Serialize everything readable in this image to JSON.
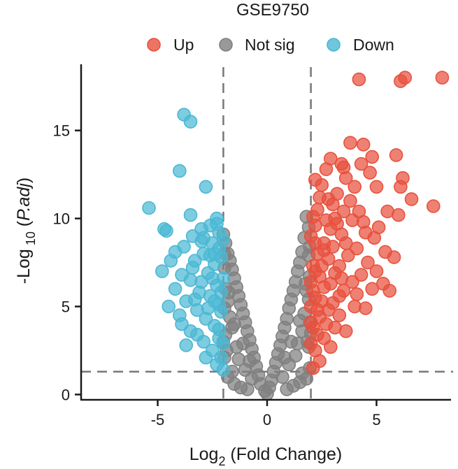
{
  "chart_data": {
    "type": "scatter",
    "title": "GSE9750",
    "xlabel": {
      "prefix": "Log",
      "subscript": "2",
      "suffix": " (Fold Change)"
    },
    "ylabel": {
      "prefix": "-Log",
      "subscript": " 10",
      "middle": " (",
      "italic": "P.adj",
      "suffix": ")"
    },
    "xlim": [
      -8.5,
      8.5
    ],
    "ylim": [
      -0.3,
      18.6
    ],
    "xticks": [
      -5,
      0,
      5
    ],
    "xtick_labels": [
      "-5",
      "0",
      "5"
    ],
    "yticks": [
      0,
      5,
      10,
      15
    ],
    "ytick_labels": [
      "0",
      "5",
      "10",
      "15"
    ],
    "thresholds": {
      "log2fc": [
        -2,
        2
      ],
      "neg_log10_padj": 1.3
    },
    "legend": {
      "placement": "top",
      "entries": [
        {
          "key": "up",
          "label": "Up",
          "color": "#e8513d"
        },
        {
          "key": "notsig",
          "label": "Not sig",
          "color": "#808080"
        },
        {
          "key": "down",
          "label": "Down",
          "color": "#4bb8d4"
        }
      ]
    },
    "series": [
      {
        "name": "Up",
        "color": "#e8513d",
        "points": [
          [
            8.0,
            18.0
          ],
          [
            6.3,
            18.0
          ],
          [
            6.1,
            17.8
          ],
          [
            4.2,
            17.9
          ],
          [
            3.8,
            14.3
          ],
          [
            4.4,
            14.2
          ],
          [
            4.8,
            13.5
          ],
          [
            5.9,
            13.6
          ],
          [
            4.3,
            13.1
          ],
          [
            3.4,
            13.1
          ],
          [
            2.9,
            13.4
          ],
          [
            3.6,
            12.3
          ],
          [
            6.2,
            12.3
          ],
          [
            6.1,
            11.8
          ],
          [
            2.5,
            11.9
          ],
          [
            5.0,
            11.8
          ],
          [
            4.0,
            11.8
          ],
          [
            3.2,
            11.4
          ],
          [
            2.4,
            11.2
          ],
          [
            3.0,
            10.8
          ],
          [
            7.6,
            10.7
          ],
          [
            5.5,
            10.4
          ],
          [
            6.0,
            10.2
          ],
          [
            3.5,
            10.4
          ],
          [
            3.1,
            10.0
          ],
          [
            2.7,
            9.9
          ],
          [
            4.4,
            9.8
          ],
          [
            3.9,
            9.9
          ],
          [
            5.1,
            9.5
          ],
          [
            2.2,
            9.6
          ],
          [
            4.9,
            8.9
          ],
          [
            3.4,
            9.1
          ],
          [
            2.6,
            8.6
          ],
          [
            5.4,
            8.1
          ],
          [
            4.1,
            8.3
          ],
          [
            3.0,
            8.4
          ],
          [
            2.3,
            8.0
          ],
          [
            3.7,
            7.9
          ],
          [
            4.6,
            7.5
          ],
          [
            2.8,
            7.7
          ],
          [
            5.0,
            7.0
          ],
          [
            4.3,
            6.8
          ],
          [
            3.1,
            6.9
          ],
          [
            2.4,
            6.7
          ],
          [
            3.9,
            6.4
          ],
          [
            5.3,
            6.3
          ],
          [
            4.8,
            6.0
          ],
          [
            2.6,
            6.1
          ],
          [
            3.5,
            5.9
          ],
          [
            4.1,
            5.7
          ],
          [
            2.2,
            5.5
          ],
          [
            3.0,
            5.2
          ],
          [
            5.6,
            5.9
          ],
          [
            2.8,
            4.8
          ],
          [
            2.4,
            4.4
          ],
          [
            3.3,
            4.5
          ],
          [
            2.1,
            3.8
          ],
          [
            2.6,
            3.2
          ],
          [
            2.2,
            2.5
          ],
          [
            2.9,
            2.7
          ],
          [
            2.4,
            1.9
          ],
          [
            2.1,
            1.5
          ],
          [
            2.0,
            2.9
          ],
          [
            2.5,
            5.3
          ],
          [
            2.0,
            6.4
          ],
          [
            2.1,
            7.3
          ],
          [
            2.2,
            8.6
          ],
          [
            2.9,
            9.4
          ],
          [
            3.3,
            7.3
          ],
          [
            3.6,
            8.6
          ],
          [
            4.5,
            9.2
          ],
          [
            3.8,
            11.0
          ],
          [
            2.7,
            12.8
          ],
          [
            4.2,
            10.4
          ],
          [
            5.8,
            7.8
          ],
          [
            3.3,
            5.6
          ],
          [
            2.3,
            3.4
          ],
          [
            2.7,
            4.0
          ],
          [
            2.1,
            10.1
          ],
          [
            2.0,
            9.0
          ],
          [
            2.3,
            4.8
          ],
          [
            3.1,
            3.8
          ],
          [
            4.0,
            5.0
          ],
          [
            3.6,
            3.6
          ],
          [
            2.5,
            7.3
          ],
          [
            2.9,
            6.3
          ],
          [
            3.4,
            6.6
          ],
          [
            4.5,
            4.9
          ],
          [
            2.0,
            4.1
          ],
          [
            2.8,
            11.1
          ],
          [
            3.5,
            12.9
          ],
          [
            4.7,
            12.6
          ],
          [
            2.2,
            12.2
          ],
          [
            6.6,
            11.1
          ],
          [
            2.1,
            5.9
          ],
          [
            2.0,
            5.0
          ],
          [
            2.2,
            7.0
          ],
          [
            2.6,
            8.2
          ],
          [
            3.2,
            9.7
          ],
          [
            2.3,
            10.5
          ]
        ]
      },
      {
        "name": "Not sig",
        "color": "#808080",
        "points": [
          [
            1.8,
            10.1
          ],
          [
            -2.0,
            9.1
          ],
          [
            1.9,
            9.5
          ],
          [
            -1.9,
            8.6
          ],
          [
            1.7,
            8.9
          ],
          [
            -1.8,
            8.0
          ],
          [
            1.6,
            8.1
          ],
          [
            -1.7,
            7.6
          ],
          [
            1.5,
            7.5
          ],
          [
            -1.6,
            7.1
          ],
          [
            1.4,
            7.0
          ],
          [
            -1.5,
            6.6
          ],
          [
            1.3,
            6.4
          ],
          [
            -1.4,
            6.1
          ],
          [
            1.2,
            5.9
          ],
          [
            -1.3,
            5.6
          ],
          [
            1.1,
            5.4
          ],
          [
            -1.2,
            5.1
          ],
          [
            1.0,
            4.9
          ],
          [
            -1.1,
            4.6
          ],
          [
            0.9,
            4.3
          ],
          [
            -1.0,
            4.1
          ],
          [
            0.8,
            3.8
          ],
          [
            -0.9,
            3.6
          ],
          [
            0.7,
            3.3
          ],
          [
            -0.8,
            3.1
          ],
          [
            0.6,
            2.8
          ],
          [
            -0.7,
            2.6
          ],
          [
            0.5,
            2.3
          ],
          [
            -0.6,
            2.1
          ],
          [
            0.4,
            1.8
          ],
          [
            -0.5,
            1.6
          ],
          [
            0.3,
            1.3
          ],
          [
            -0.4,
            1.1
          ],
          [
            0.2,
            0.8
          ],
          [
            -0.3,
            0.6
          ],
          [
            0.1,
            0.4
          ],
          [
            -0.1,
            0.2
          ],
          [
            0.0,
            0.05
          ],
          [
            1.9,
            7.9
          ],
          [
            -1.95,
            7.2
          ],
          [
            1.95,
            6.7
          ],
          [
            -1.9,
            6.0
          ],
          [
            1.9,
            5.4
          ],
          [
            -1.95,
            4.9
          ],
          [
            1.95,
            4.1
          ],
          [
            -1.9,
            3.4
          ],
          [
            1.9,
            2.7
          ],
          [
            -1.95,
            2.1
          ],
          [
            1.95,
            1.5
          ],
          [
            -1.8,
            1.0
          ],
          [
            1.8,
            0.9
          ],
          [
            -1.5,
            0.6
          ],
          [
            1.5,
            0.7
          ],
          [
            -1.2,
            0.4
          ],
          [
            1.2,
            0.5
          ],
          [
            -0.9,
            0.3
          ],
          [
            0.9,
            0.3
          ],
          [
            1.6,
            3.6
          ],
          [
            -1.6,
            3.8
          ],
          [
            1.4,
            2.9
          ],
          [
            -1.4,
            2.7
          ],
          [
            1.7,
            4.6
          ],
          [
            -1.7,
            4.4
          ],
          [
            1.8,
            5.9
          ],
          [
            -1.8,
            5.3
          ],
          [
            1.3,
            2.2
          ],
          [
            -1.3,
            2.0
          ],
          [
            1.0,
            1.7
          ],
          [
            -1.0,
            1.4
          ],
          [
            0.7,
            1.0
          ],
          [
            -0.7,
            0.9
          ],
          [
            1.85,
            3.0
          ],
          [
            -1.85,
            2.5
          ],
          [
            1.6,
            1.2
          ],
          [
            -1.6,
            1.3
          ],
          [
            1.1,
            3.0
          ],
          [
            -1.1,
            2.9
          ],
          [
            0.8,
            2.1
          ],
          [
            -0.8,
            1.9
          ],
          [
            1.5,
            4.2
          ],
          [
            -1.5,
            4.0
          ],
          [
            1.75,
            6.3
          ],
          [
            -1.75,
            5.8
          ],
          [
            2.0,
            3.5
          ],
          [
            -2.0,
            3.0
          ],
          [
            1.95,
            8.4
          ],
          [
            -1.95,
            8.0
          ]
        ]
      },
      {
        "name": "Down",
        "color": "#4bb8d4",
        "points": [
          [
            -3.8,
            15.9
          ],
          [
            -3.5,
            15.5
          ],
          [
            -4.0,
            12.7
          ],
          [
            -2.8,
            11.8
          ],
          [
            -5.4,
            10.6
          ],
          [
            -3.5,
            10.2
          ],
          [
            -2.3,
            10.0
          ],
          [
            -2.6,
            9.6
          ],
          [
            -3.0,
            9.4
          ],
          [
            -4.7,
            9.4
          ],
          [
            -2.2,
            9.2
          ],
          [
            -4.6,
            9.3
          ],
          [
            -2.9,
            8.9
          ],
          [
            -3.4,
            9.0
          ],
          [
            -2.5,
            8.6
          ],
          [
            -3.8,
            8.4
          ],
          [
            -2.2,
            8.3
          ],
          [
            -4.2,
            8.1
          ],
          [
            -2.9,
            8.0
          ],
          [
            -3.3,
            7.6
          ],
          [
            -2.4,
            7.4
          ],
          [
            -4.8,
            7.0
          ],
          [
            -3.9,
            6.8
          ],
          [
            -2.7,
            6.9
          ],
          [
            -3.5,
            6.5
          ],
          [
            -2.3,
            6.2
          ],
          [
            -4.2,
            6.0
          ],
          [
            -3.1,
            5.8
          ],
          [
            -2.6,
            5.6
          ],
          [
            -3.7,
            5.3
          ],
          [
            -2.2,
            5.1
          ],
          [
            -3.2,
            4.8
          ],
          [
            -4.0,
            4.5
          ],
          [
            -2.8,
            4.3
          ],
          [
            -2.4,
            3.9
          ],
          [
            -3.5,
            3.6
          ],
          [
            -2.2,
            3.2
          ],
          [
            -2.9,
            3.0
          ],
          [
            -3.7,
            2.8
          ],
          [
            -2.5,
            2.5
          ],
          [
            -2.1,
            2.1
          ],
          [
            -2.3,
            1.7
          ],
          [
            -2.0,
            1.4
          ],
          [
            -2.1,
            4.7
          ],
          [
            -2.0,
            6.6
          ],
          [
            -2.1,
            7.8
          ],
          [
            -2.3,
            9.7
          ],
          [
            -2.6,
            7.9
          ],
          [
            -3.0,
            6.4
          ],
          [
            -3.4,
            7.2
          ],
          [
            -2.4,
            5.3
          ],
          [
            -2.8,
            2.1
          ],
          [
            -3.2,
            3.4
          ],
          [
            -4.5,
            5.0
          ],
          [
            -3.9,
            4.0
          ],
          [
            -2.2,
            3.7
          ],
          [
            -2.7,
            4.9
          ],
          [
            -3.3,
            5.4
          ],
          [
            -2.5,
            6.6
          ],
          [
            -4.4,
            7.6
          ],
          [
            -2.0,
            8.8
          ],
          [
            -2.1,
            5.8
          ],
          [
            -2.0,
            2.9
          ],
          [
            -3.0,
            8.7
          ],
          [
            -2.4,
            8.0
          ]
        ]
      }
    ]
  }
}
